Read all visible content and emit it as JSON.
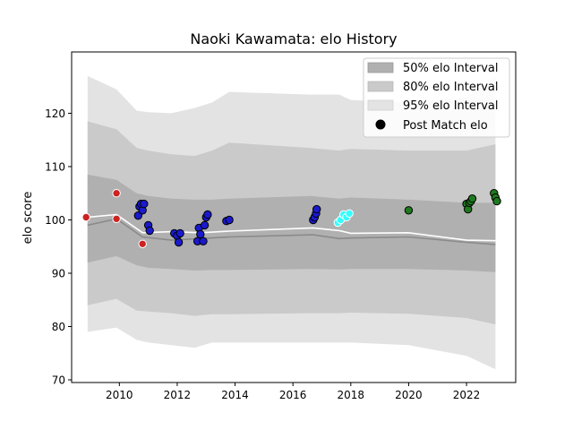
{
  "chart_data": {
    "type": "scatter",
    "title": "Naoki Kawamata: elo History",
    "xlabel": "",
    "ylabel": "elo score",
    "xlim": [
      2008.35,
      2023.7
    ],
    "ylim": [
      69.5,
      131.5
    ],
    "x_ticks": [
      2010,
      2012,
      2014,
      2016,
      2018,
      2020,
      2022
    ],
    "y_ticks": [
      70,
      80,
      90,
      100,
      110,
      120
    ],
    "x_tick_labels": [
      "2010",
      "2012",
      "2014",
      "2016",
      "2018",
      "2020",
      "2022"
    ],
    "y_tick_labels": [
      "70",
      "80",
      "90",
      "100",
      "110",
      "120"
    ],
    "legend": {
      "position": "top-right",
      "entries": [
        "50% elo Interval",
        "80% elo Interval",
        "95% elo Interval",
        "Post Match elo"
      ]
    },
    "colors": {
      "band50": "#b0b0b0",
      "band80": "#cacaca",
      "band95": "#e3e3e3",
      "median_line": "#8a8a8a",
      "mean_line": "#ffffff",
      "marker_edge_dark": "#000000",
      "marker_edge_light": "#ffffff"
    },
    "bands": {
      "x": [
        2008.9,
        2009.9,
        2010.6,
        2011.0,
        2011.8,
        2012.6,
        2013.2,
        2013.8,
        2016.6,
        2017.6,
        2018.0,
        2020.0,
        2022.0,
        2023.0
      ],
      "p50_low": [
        92.0,
        93.2,
        91.5,
        91.0,
        90.8,
        90.5,
        90.6,
        90.6,
        90.8,
        90.7,
        90.8,
        90.8,
        90.5,
        90.2
      ],
      "p50_high": [
        108.5,
        107.5,
        105.0,
        104.5,
        104.0,
        103.8,
        103.8,
        104.0,
        104.5,
        104.0,
        104.2,
        103.8,
        103.2,
        103.2
      ],
      "p80_low": [
        84.0,
        85.2,
        83.0,
        82.8,
        82.5,
        82.0,
        82.3,
        82.3,
        82.5,
        82.5,
        82.6,
        82.4,
        81.6,
        80.4
      ],
      "p80_high": [
        118.5,
        117.0,
        113.5,
        113.0,
        112.3,
        112.0,
        113.0,
        114.5,
        113.5,
        113.0,
        113.3,
        113.0,
        113.0,
        114.2
      ],
      "p95_low": [
        79.0,
        79.8,
        77.5,
        77.0,
        76.5,
        76.0,
        77.0,
        77.0,
        77.0,
        77.0,
        77.0,
        76.5,
        74.5,
        72.0
      ],
      "p95_high": [
        127.0,
        124.5,
        120.5,
        120.2,
        120.0,
        121.0,
        122.0,
        124.0,
        123.5,
        123.5,
        122.5,
        122.0,
        123.0,
        127.0
      ]
    },
    "series": [
      {
        "name": "Median",
        "x": [
          2008.9,
          2009.9,
          2010.8,
          2011.8,
          2012.8,
          2013.8,
          2016.7,
          2017.6,
          2018.0,
          2020.0,
          2022.0,
          2023.0
        ],
        "y": [
          99.0,
          100.2,
          96.8,
          96.2,
          96.5,
          96.8,
          97.2,
          96.5,
          96.6,
          96.8,
          95.8,
          95.4
        ]
      },
      {
        "name": "Mean",
        "x": [
          2008.9,
          2009.9,
          2010.8,
          2011.8,
          2012.8,
          2013.8,
          2016.7,
          2017.6,
          2018.0,
          2020.0,
          2022.0,
          2023.0
        ],
        "y": [
          100.5,
          101.0,
          97.6,
          97.8,
          97.6,
          97.9,
          98.5,
          98.0,
          97.5,
          97.6,
          96.2,
          96.1
        ]
      }
    ],
    "post_match_elo": [
      {
        "x": 2008.85,
        "y": 100.5,
        "color": "#cc2222",
        "edge": "light"
      },
      {
        "x": 2009.9,
        "y": 105.0,
        "color": "#cc2222",
        "edge": "light"
      },
      {
        "x": 2009.9,
        "y": 100.2,
        "color": "#cc2222",
        "edge": "light"
      },
      {
        "x": 2010.8,
        "y": 95.5,
        "color": "#cc2222",
        "edge": "light"
      },
      {
        "x": 2010.65,
        "y": 100.8,
        "color": "#1a1acc",
        "edge": "dark"
      },
      {
        "x": 2010.7,
        "y": 102.5,
        "color": "#1a1acc",
        "edge": "dark"
      },
      {
        "x": 2010.75,
        "y": 103.0,
        "color": "#1a1acc",
        "edge": "dark"
      },
      {
        "x": 2010.8,
        "y": 101.8,
        "color": "#1a1acc",
        "edge": "dark"
      },
      {
        "x": 2010.85,
        "y": 103.0,
        "color": "#1a1acc",
        "edge": "dark"
      },
      {
        "x": 2011.0,
        "y": 99.0,
        "color": "#1a1acc",
        "edge": "dark"
      },
      {
        "x": 2011.05,
        "y": 98.0,
        "color": "#1a1acc",
        "edge": "dark"
      },
      {
        "x": 2011.9,
        "y": 97.5,
        "color": "#1a1acc",
        "edge": "dark"
      },
      {
        "x": 2012.0,
        "y": 97.0,
        "color": "#1a1acc",
        "edge": "dark"
      },
      {
        "x": 2012.05,
        "y": 95.8,
        "color": "#1a1acc",
        "edge": "dark"
      },
      {
        "x": 2012.1,
        "y": 97.5,
        "color": "#1a1acc",
        "edge": "dark"
      },
      {
        "x": 2012.7,
        "y": 96.0,
        "color": "#1a1acc",
        "edge": "dark"
      },
      {
        "x": 2012.75,
        "y": 98.5,
        "color": "#1a1acc",
        "edge": "dark"
      },
      {
        "x": 2012.8,
        "y": 97.3,
        "color": "#1a1acc",
        "edge": "dark"
      },
      {
        "x": 2012.9,
        "y": 96.0,
        "color": "#1a1acc",
        "edge": "dark"
      },
      {
        "x": 2012.95,
        "y": 99.0,
        "color": "#1a1acc",
        "edge": "dark"
      },
      {
        "x": 2013.0,
        "y": 100.5,
        "color": "#1a1acc",
        "edge": "dark"
      },
      {
        "x": 2013.05,
        "y": 101.0,
        "color": "#1a1acc",
        "edge": "dark"
      },
      {
        "x": 2013.7,
        "y": 99.8,
        "color": "#1a1acc",
        "edge": "dark"
      },
      {
        "x": 2013.8,
        "y": 100.0,
        "color": "#1a1acc",
        "edge": "dark"
      },
      {
        "x": 2016.7,
        "y": 100.0,
        "color": "#1a1acc",
        "edge": "dark"
      },
      {
        "x": 2016.75,
        "y": 100.5,
        "color": "#1a1acc",
        "edge": "dark"
      },
      {
        "x": 2016.8,
        "y": 101.2,
        "color": "#1a1acc",
        "edge": "dark"
      },
      {
        "x": 2016.82,
        "y": 102.0,
        "color": "#1a1acc",
        "edge": "dark"
      },
      {
        "x": 2017.55,
        "y": 99.5,
        "color": "#33ffff",
        "edge": "light"
      },
      {
        "x": 2017.65,
        "y": 100.0,
        "color": "#33ffff",
        "edge": "light"
      },
      {
        "x": 2017.75,
        "y": 101.0,
        "color": "#33ffff",
        "edge": "light"
      },
      {
        "x": 2017.85,
        "y": 100.5,
        "color": "#33ffff",
        "edge": "light"
      },
      {
        "x": 2017.95,
        "y": 101.2,
        "color": "#33ffff",
        "edge": "light"
      },
      {
        "x": 2020.0,
        "y": 101.8,
        "color": "#1e7a1e",
        "edge": "dark"
      },
      {
        "x": 2022.0,
        "y": 103.0,
        "color": "#1e7a1e",
        "edge": "dark"
      },
      {
        "x": 2022.05,
        "y": 102.0,
        "color": "#1e7a1e",
        "edge": "dark"
      },
      {
        "x": 2022.1,
        "y": 103.2,
        "color": "#1e7a1e",
        "edge": "dark"
      },
      {
        "x": 2022.15,
        "y": 103.5,
        "color": "#1e7a1e",
        "edge": "dark"
      },
      {
        "x": 2022.2,
        "y": 104.0,
        "color": "#1e7a1e",
        "edge": "dark"
      },
      {
        "x": 2022.95,
        "y": 105.0,
        "color": "#1e7a1e",
        "edge": "dark"
      },
      {
        "x": 2023.0,
        "y": 104.2,
        "color": "#1e7a1e",
        "edge": "dark"
      },
      {
        "x": 2023.05,
        "y": 103.5,
        "color": "#1e7a1e",
        "edge": "dark"
      }
    ]
  }
}
